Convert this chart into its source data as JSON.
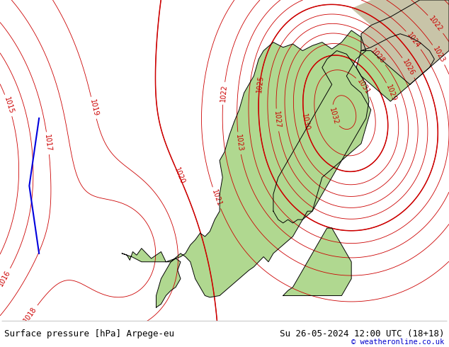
{
  "title_left": "Surface pressure [hPa] Arpege-eu",
  "title_right": "Su 26-05-2024 12:00 UTC (18+18)",
  "watermark": "© weatheronline.co.uk",
  "figsize": [
    6.34,
    4.9
  ],
  "dpi": 100,
  "bg_color_ocean": "#d0d0d0",
  "bg_color_land_green": "#b0d890",
  "coast_color": "#000000",
  "contour_color": "#cc0000",
  "label_color": "#cc0000",
  "bottom_bar_color": "#ffffff",
  "title_color": "#000000",
  "blue_line_color": "#0000dd",
  "watermark_color": "#0000cc",
  "bottom_bar_height": 0.075,
  "font_size_title": 9,
  "font_size_watermark": 7.5,
  "font_size_contour": 7,
  "lon_min": -8,
  "lon_max": 38,
  "lat_min": 54,
  "lat_max": 73
}
